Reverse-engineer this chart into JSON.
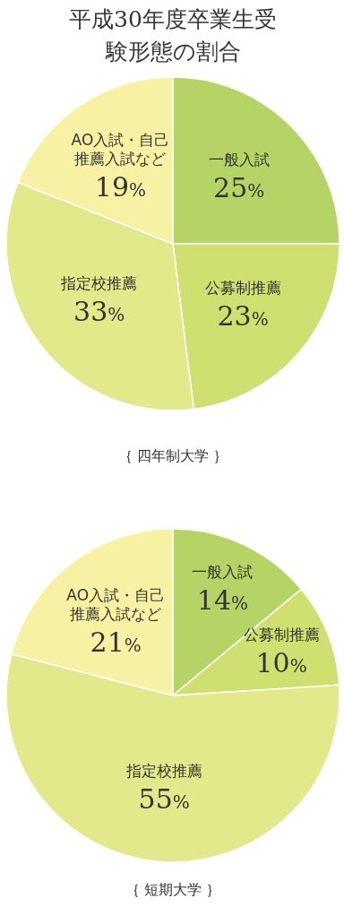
{
  "chart_data": [
    {
      "type": "pie",
      "title": "平成30年度卒業生受験形態の割合",
      "xlabel": "｛ 四年制大学 ｝",
      "categories": [
        "一般入試",
        "公募制推薦",
        "指定校推薦",
        "AO入試・自己推薦入試など"
      ],
      "values": [
        25,
        23,
        33,
        19
      ],
      "value_labels": [
        "25%",
        "23%",
        "33%",
        "19%"
      ],
      "colors": [
        "#b5d465",
        "#cfe070",
        "#e2e98a",
        "#f7f1a4"
      ]
    },
    {
      "type": "pie",
      "xlabel": "｛ 短期大学 ｝",
      "categories": [
        "一般入試",
        "公募制推薦",
        "指定校推薦",
        "AO入試・自己推薦入試など"
      ],
      "values": [
        14,
        10,
        55,
        21
      ],
      "value_labels": [
        "14%",
        "10%",
        "55%",
        "21%"
      ],
      "colors": [
        "#b5d465",
        "#cfe070",
        "#e2e98a",
        "#f7f1a4"
      ]
    }
  ]
}
